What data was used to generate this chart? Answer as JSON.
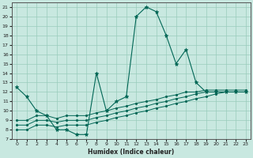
{
  "xlabel": "Humidex (Indice chaleur)",
  "bg_color": "#c8e8e0",
  "grid_color": "#99ccbb",
  "line_color": "#006655",
  "xlim": [
    -0.5,
    23.5
  ],
  "ylim": [
    7,
    21.5
  ],
  "xticks": [
    0,
    1,
    2,
    3,
    4,
    5,
    6,
    7,
    8,
    9,
    10,
    11,
    12,
    13,
    14,
    15,
    16,
    17,
    18,
    19,
    20,
    21,
    22,
    23
  ],
  "yticks": [
    7,
    8,
    9,
    10,
    11,
    12,
    13,
    14,
    15,
    16,
    17,
    18,
    19,
    20,
    21
  ],
  "line1_x": [
    0,
    1,
    2,
    3,
    4,
    5,
    6,
    7,
    8,
    9,
    10,
    11,
    12,
    13,
    14,
    15,
    16,
    17,
    18,
    19,
    20,
    21,
    22,
    23
  ],
  "line1_y": [
    12.5,
    11.5,
    10.0,
    9.5,
    8.0,
    8.0,
    7.5,
    7.5,
    14.0,
    10.0,
    11.0,
    11.5,
    20.0,
    21.0,
    20.5,
    18.0,
    15.0,
    16.5,
    13.0,
    12.0,
    12.0,
    12.0,
    12.0,
    12.0
  ],
  "line2_x": [
    0,
    1,
    2,
    3,
    4,
    5,
    6,
    7,
    8,
    9,
    10,
    11,
    12,
    13,
    14,
    15,
    16,
    17,
    18,
    19,
    20,
    21,
    22,
    23
  ],
  "line2_y": [
    9.0,
    9.0,
    9.5,
    9.5,
    9.2,
    9.5,
    9.5,
    9.5,
    9.8,
    10.0,
    10.3,
    10.5,
    10.8,
    11.0,
    11.2,
    11.5,
    11.7,
    12.0,
    12.0,
    12.2,
    12.2,
    12.2,
    12.2,
    12.2
  ],
  "line3_x": [
    0,
    1,
    2,
    3,
    4,
    5,
    6,
    7,
    8,
    9,
    10,
    11,
    12,
    13,
    14,
    15,
    16,
    17,
    18,
    19,
    20,
    21,
    22,
    23
  ],
  "line3_y": [
    8.5,
    8.5,
    9.0,
    9.0,
    8.8,
    9.0,
    9.0,
    9.0,
    9.3,
    9.5,
    9.8,
    10.0,
    10.3,
    10.5,
    10.8,
    11.0,
    11.3,
    11.5,
    11.8,
    12.0,
    12.0,
    12.0,
    12.0,
    12.0
  ],
  "line4_x": [
    0,
    1,
    2,
    3,
    4,
    5,
    6,
    7,
    8,
    9,
    10,
    11,
    12,
    13,
    14,
    15,
    16,
    17,
    18,
    19,
    20,
    21,
    22,
    23
  ],
  "line4_y": [
    8.0,
    8.0,
    8.5,
    8.5,
    8.3,
    8.5,
    8.5,
    8.5,
    8.8,
    9.0,
    9.3,
    9.5,
    9.8,
    10.0,
    10.3,
    10.5,
    10.8,
    11.0,
    11.3,
    11.5,
    11.8,
    12.0,
    12.0,
    12.0
  ]
}
